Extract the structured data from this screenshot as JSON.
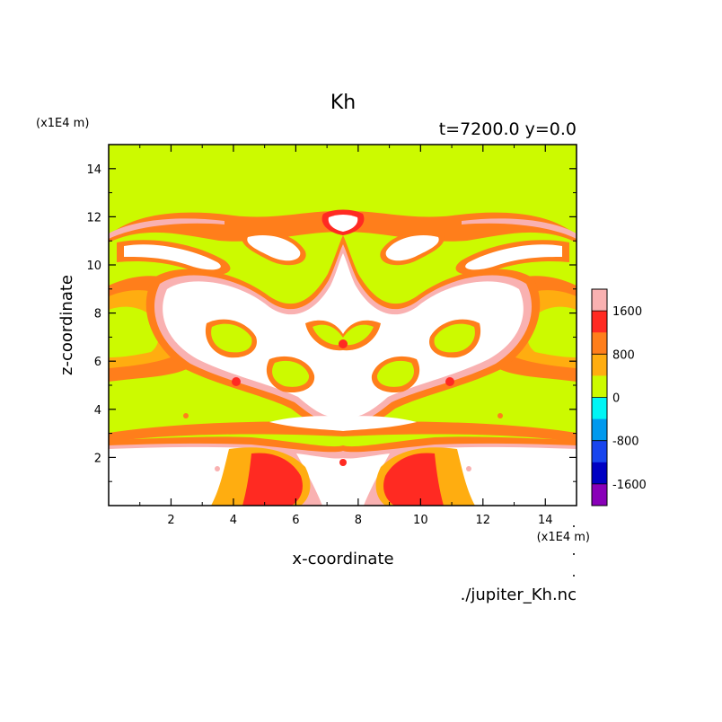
{
  "chart_data": {
    "type": "heatmap",
    "title": "Kh",
    "subtitle": "t=7200.0 y=0.0",
    "xlabel": "x-coordinate",
    "ylabel": "z-coordinate",
    "x_unit": "(x1E4 m)",
    "y_unit": "(x1E4 m)",
    "source": "./jupiter_Kh.nc",
    "xlim": [
      0,
      15
    ],
    "ylim": [
      0,
      15
    ],
    "x_ticks": [
      2,
      4,
      6,
      8,
      10,
      12,
      14
    ],
    "y_ticks": [
      2,
      4,
      6,
      8,
      10,
      12,
      14
    ],
    "grid": false,
    "colorbar": {
      "tick_labels": [
        "1600",
        "800",
        "0",
        "-800",
        "-1600"
      ],
      "levels": [
        {
          "color": "#f9b1b1"
        },
        {
          "color": "#ff2a22"
        },
        {
          "color": "#ff7e1b"
        },
        {
          "color": "#ffad10"
        },
        {
          "color": "#ccfa00"
        },
        {
          "color": "#00f5f5"
        },
        {
          "color": "#0099ee"
        },
        {
          "color": "#1845ee"
        },
        {
          "color": "#0000c3"
        },
        {
          "color": "#8900b8"
        }
      ]
    },
    "field": {
      "background": "#ccfa00",
      "above_limit": "#ffffff",
      "pattern": "symmetric about x=7.5; uniform 0-level above z=12.2; turbulent high-Kh region between z=2.5 and z=12.2; strong positive values near the bottom around x=5-6 and x=9-10"
    }
  }
}
